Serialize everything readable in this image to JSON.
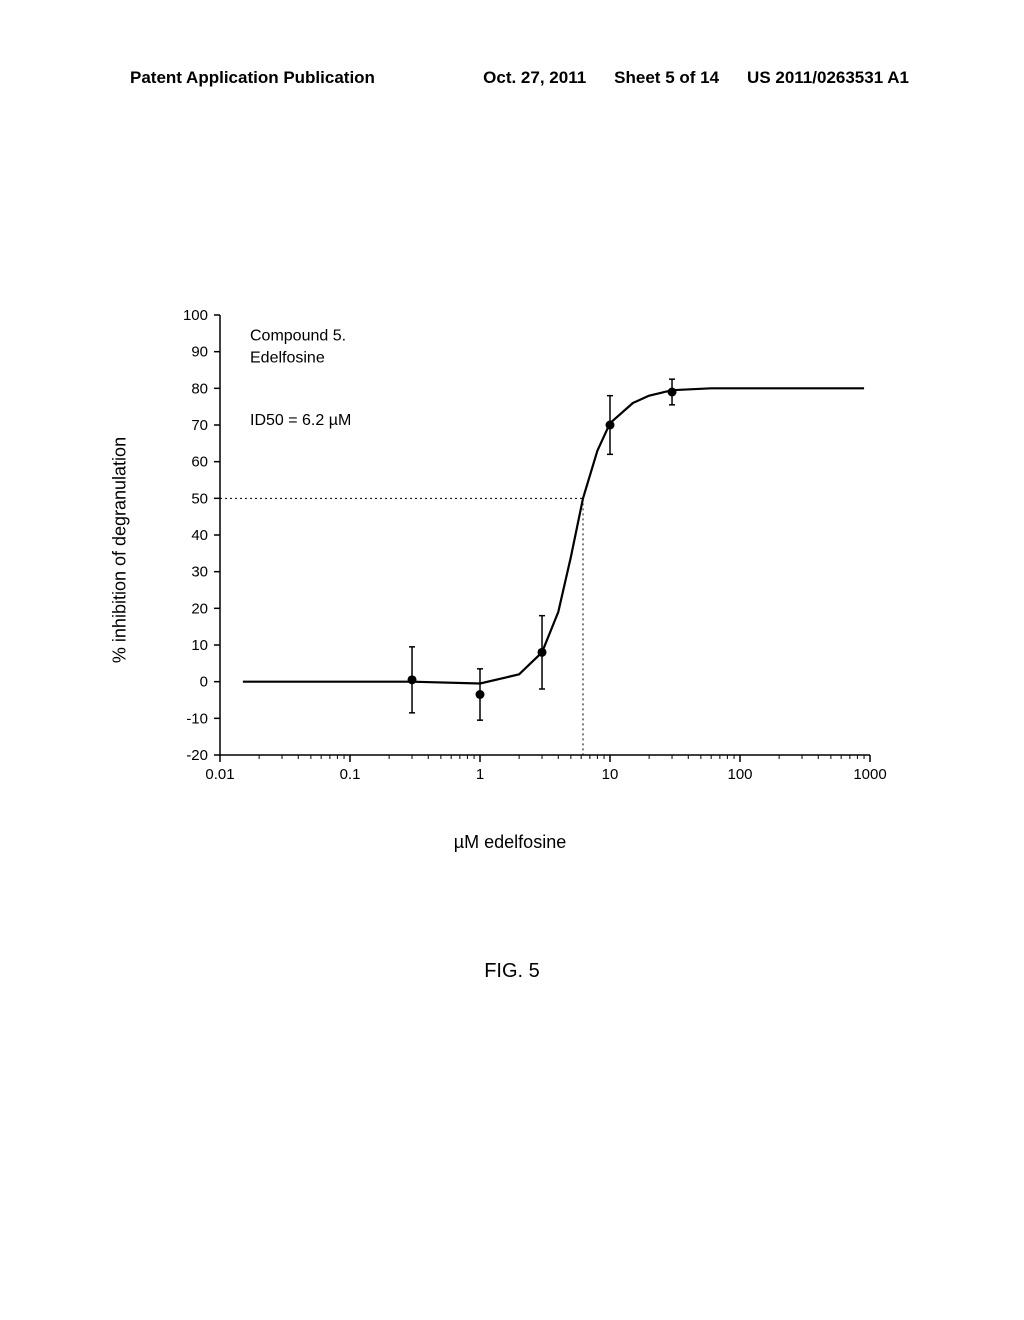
{
  "header": {
    "left": "Patent Application Publication",
    "date": "Oct. 27, 2011",
    "sheet": "Sheet 5 of 14",
    "pubno": "US 2011/0263531 A1"
  },
  "figure_caption": "FIG. 5",
  "chart": {
    "type": "scatter-line",
    "y_axis_title": "% inhibition of degranulation",
    "x_axis_title": "µM edelfosine",
    "annotation_line1": "Compound 5.",
    "annotation_line2": "Edelfosine",
    "annotation_id50": "ID50 = 6.2 µM",
    "x_scale": "log",
    "xlim": [
      0.01,
      1000
    ],
    "ylim": [
      -20,
      100
    ],
    "ytick_step": 10,
    "x_ticks": [
      0.01,
      0.1,
      1,
      10,
      100,
      1000
    ],
    "x_tick_labels": [
      "0.01",
      "0.1",
      "1",
      "10",
      "100",
      "1000"
    ],
    "id50_value": 6.2,
    "ref50_y": 50,
    "data_points": [
      {
        "x": 0.3,
        "y": 0.5,
        "err": 9
      },
      {
        "x": 1,
        "y": -3.5,
        "err": 7
      },
      {
        "x": 3,
        "y": 8,
        "err": 10
      },
      {
        "x": 10,
        "y": 70,
        "err": 8
      },
      {
        "x": 30,
        "y": 79,
        "err": 3.5
      }
    ],
    "curve_points": [
      {
        "x": 0.015,
        "y": 0
      },
      {
        "x": 0.1,
        "y": 0
      },
      {
        "x": 0.3,
        "y": 0
      },
      {
        "x": 1,
        "y": -0.5
      },
      {
        "x": 2,
        "y": 2
      },
      {
        "x": 3,
        "y": 8
      },
      {
        "x": 4,
        "y": 19
      },
      {
        "x": 5,
        "y": 34
      },
      {
        "x": 6.2,
        "y": 50
      },
      {
        "x": 8,
        "y": 63
      },
      {
        "x": 10,
        "y": 70.5
      },
      {
        "x": 15,
        "y": 76
      },
      {
        "x": 20,
        "y": 78
      },
      {
        "x": 30,
        "y": 79.5
      },
      {
        "x": 60,
        "y": 80
      },
      {
        "x": 200,
        "y": 80
      },
      {
        "x": 900,
        "y": 80
      }
    ],
    "colors": {
      "background": "#ffffff",
      "axis": "#000000",
      "marker_fill": "#000000",
      "curve": "#000000",
      "dotted_ref": "#000000",
      "text": "#000000"
    },
    "marker_radius": 4.5,
    "curve_width": 2.2,
    "axis_width": 1.5,
    "errorbar_width": 1.5,
    "errorbar_cap": 6
  }
}
